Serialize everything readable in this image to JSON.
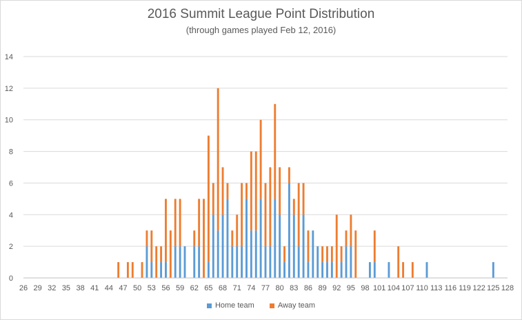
{
  "chart_data": {
    "type": "bar",
    "stacked": true,
    "title": "2016 Summit League Point Distribution",
    "subtitle": "(through games played Feb 12, 2016)",
    "xlabel": "",
    "ylabel": "",
    "ylim": [
      0,
      14
    ],
    "yticks": [
      0,
      2,
      4,
      6,
      8,
      10,
      12,
      14
    ],
    "xrange": [
      26,
      128
    ],
    "xticks": [
      26,
      29,
      32,
      35,
      38,
      41,
      44,
      47,
      50,
      53,
      56,
      59,
      62,
      65,
      68,
      71,
      74,
      77,
      80,
      83,
      86,
      89,
      92,
      95,
      98,
      101,
      104,
      107,
      110,
      113,
      116,
      119,
      122,
      125,
      128
    ],
    "grid": true,
    "legend_position": "bottom",
    "points": [
      46,
      47,
      48,
      49,
      50,
      51,
      52,
      53,
      54,
      55,
      56,
      57,
      58,
      59,
      60,
      61,
      62,
      63,
      64,
      65,
      66,
      67,
      68,
      69,
      70,
      71,
      72,
      73,
      74,
      75,
      76,
      77,
      78,
      79,
      80,
      81,
      82,
      83,
      84,
      85,
      86,
      87,
      88,
      89,
      90,
      91,
      92,
      93,
      94,
      95,
      96,
      97,
      98,
      99,
      100,
      101,
      102,
      103,
      104,
      105,
      106,
      107,
      108,
      109,
      110,
      111,
      112,
      113,
      114,
      115,
      116,
      117,
      118,
      119,
      120,
      121,
      122,
      123,
      124,
      125,
      126,
      127,
      128
    ],
    "series": [
      {
        "name": "Home team",
        "color": "#5b9bd5",
        "values": [
          0,
          0,
          0,
          0,
          0,
          0,
          2,
          1,
          0,
          1,
          1,
          0,
          2,
          2,
          2,
          0,
          2,
          2,
          0,
          1,
          4,
          3,
          4,
          5,
          2,
          2,
          2,
          5,
          3,
          3,
          5,
          2,
          2,
          5,
          4,
          1,
          6,
          4,
          2,
          4,
          1,
          3,
          2,
          1,
          1,
          1,
          0,
          1,
          2,
          2,
          0,
          0,
          0,
          1,
          1,
          0,
          0,
          1,
          0,
          0,
          0,
          0,
          0,
          0,
          0,
          1,
          0,
          0,
          0,
          0,
          0,
          0,
          0,
          0,
          0,
          0,
          0,
          0,
          0,
          1,
          0,
          0,
          0
        ]
      },
      {
        "name": "Away team",
        "color": "#ed7d31",
        "values": [
          1,
          0,
          1,
          1,
          0,
          1,
          1,
          2,
          2,
          1,
          4,
          3,
          3,
          3,
          0,
          0,
          1,
          3,
          5,
          8,
          2,
          9,
          3,
          1,
          1,
          2,
          4,
          1,
          5,
          5,
          5,
          4,
          5,
          6,
          3,
          1,
          1,
          1,
          4,
          2,
          2,
          0,
          0,
          1,
          1,
          1,
          4,
          1,
          1,
          2,
          3,
          0,
          0,
          0,
          2,
          0,
          0,
          0,
          0,
          2,
          1,
          0,
          1,
          0,
          0,
          0,
          0,
          0,
          0,
          0,
          0,
          0,
          0,
          0,
          0,
          0,
          0,
          0,
          0,
          0,
          0,
          0,
          0
        ]
      }
    ]
  }
}
